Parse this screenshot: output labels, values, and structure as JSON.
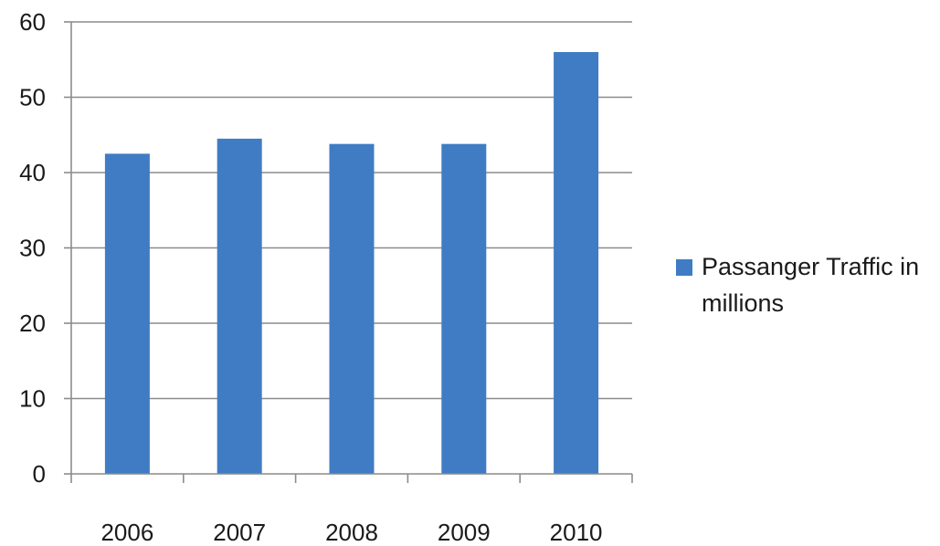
{
  "chart_data": {
    "type": "bar",
    "categories": [
      "2006",
      "2007",
      "2008",
      "2009",
      "2010"
    ],
    "series": [
      {
        "name": "Passanger Traffic in millions",
        "values": [
          42.5,
          44.5,
          43.8,
          43.8,
          56
        ]
      }
    ],
    "ylim": [
      0,
      60
    ],
    "yticks": [
      0,
      10,
      20,
      30,
      40,
      50,
      60
    ],
    "ytick_labels": [
      "0",
      "10",
      "20",
      "30",
      "40",
      "50",
      "60"
    ],
    "grid": true,
    "legend_position": "right",
    "bar_color": "#3f7cc4",
    "grid_color": "#8c8c8c"
  }
}
